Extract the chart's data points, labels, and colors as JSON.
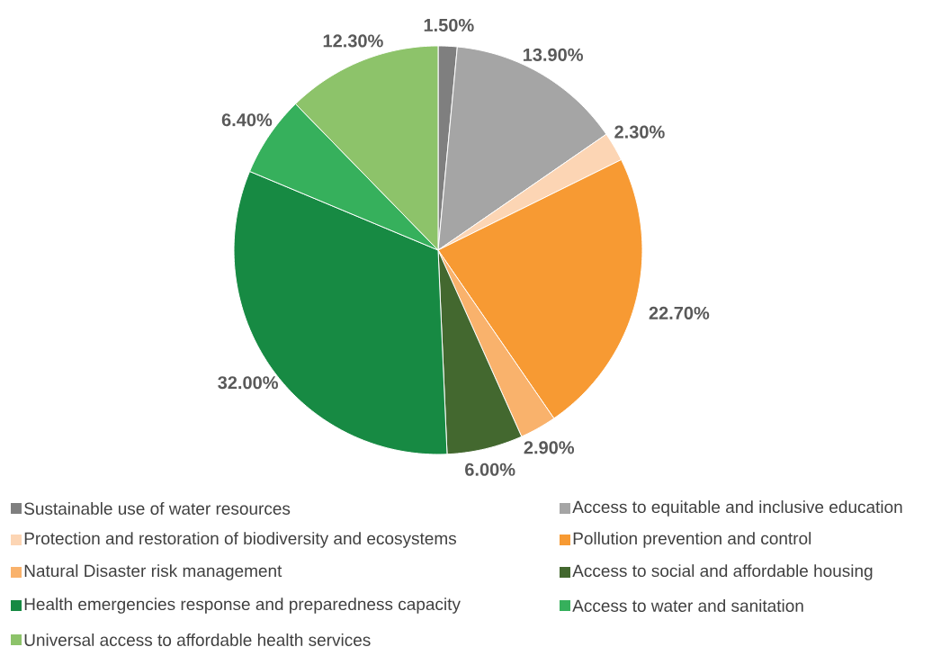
{
  "chart_data": {
    "type": "pie",
    "categories": [
      "Sustainable use of water resources",
      "Access to equitable and inclusive education",
      "Protection and restoration of biodiversity and ecosystems",
      "Pollution prevention and control",
      "Natural Disaster risk management",
      "Access to social and affordable housing",
      "Health emergencies response and preparedness capacity",
      "Access to water and sanitation",
      "Universal access to affordable health services"
    ],
    "values": [
      1.5,
      13.9,
      2.3,
      22.7,
      2.9,
      6.0,
      32.0,
      6.4,
      12.3
    ],
    "value_labels": [
      "1.50%",
      "13.90%",
      "2.30%",
      "22.70%",
      "2.90%",
      "6.00%",
      "32.00%",
      "6.40%",
      "12.30%"
    ],
    "colors": [
      "#7f7f7f",
      "#a5a5a5",
      "#fcd5b4",
      "#f79a33",
      "#f9b26c",
      "#43682f",
      "#178a43",
      "#36b05c",
      "#8dc36a"
    ],
    "legend": "bottom"
  }
}
